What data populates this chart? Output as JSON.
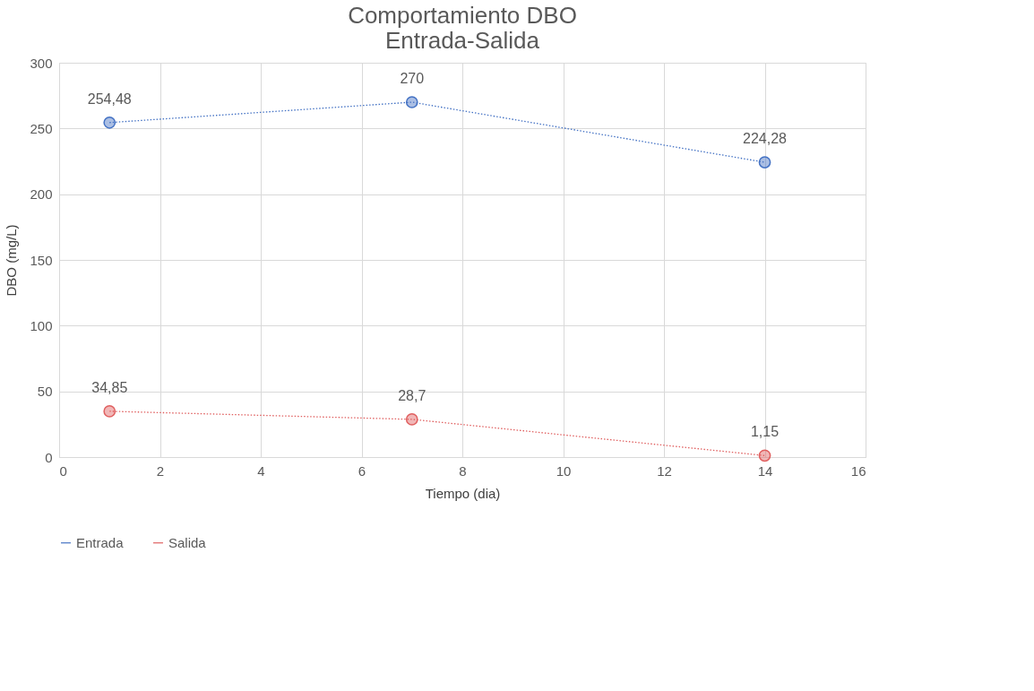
{
  "chart_data": {
    "type": "line",
    "title": "Comportamiento DBO\nEntrada-Salida",
    "xlabel": "Tiempo (dia)",
    "ylabel": "DBO (mg/L)",
    "x": [
      1,
      7,
      14
    ],
    "series": [
      {
        "name": "Entrada",
        "color": "#4472c4",
        "values": [
          254.48,
          270,
          224.28
        ],
        "value_labels": [
          "254,48",
          "270",
          "224,28"
        ]
      },
      {
        "name": "Salida",
        "color": "#e06060",
        "values": [
          34.85,
          28.7,
          1.15
        ],
        "value_labels": [
          "34,85",
          "28,7",
          "1,15"
        ]
      }
    ],
    "xlim": [
      0,
      16
    ],
    "xticks": [
      0,
      2,
      4,
      6,
      8,
      10,
      12,
      14,
      16
    ],
    "ylim": [
      0,
      300
    ],
    "yticks": [
      0,
      50,
      100,
      150,
      200,
      250,
      300
    ],
    "grid": true,
    "legend": "bottom",
    "marker": "circle",
    "line_style": "dotted"
  }
}
